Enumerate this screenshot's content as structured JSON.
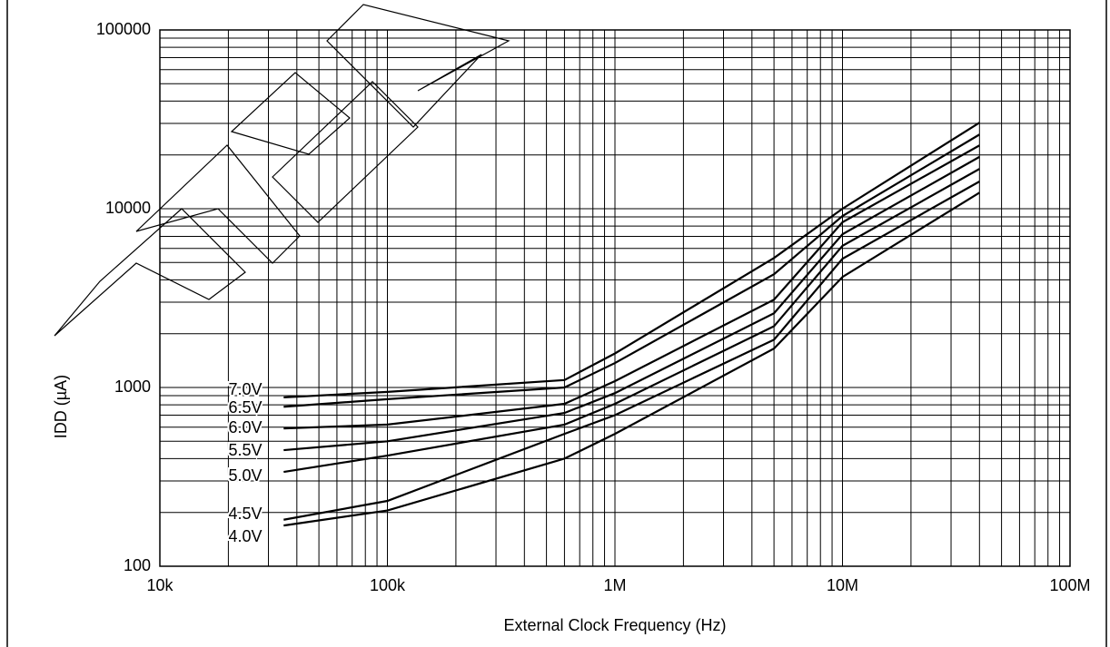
{
  "chart_data": {
    "type": "line",
    "x_label": "External Clock Frequency (Hz)",
    "y_label": "IDD (µA)",
    "log_x": true,
    "log_y": true,
    "grid": true,
    "minor_grid": true,
    "xlim": [
      10000,
      100000000
    ],
    "ylim": [
      100,
      100000
    ],
    "xticks": [
      {
        "value": 10000,
        "label": "10k"
      },
      {
        "value": 100000,
        "label": "100k"
      },
      {
        "value": 1000000,
        "label": "1M"
      },
      {
        "value": 10000000,
        "label": "10M"
      },
      {
        "value": 100000000,
        "label": "100M"
      }
    ],
    "yticks": [
      100,
      1000,
      10000,
      100000
    ],
    "x": [
      35000,
      100000,
      600000,
      1000000,
      5000000,
      10000000,
      40000000
    ],
    "series": [
      {
        "name": "7.0V",
        "color": "#000000",
        "values": [
          880,
          945,
          1100,
          1550,
          5300,
          10000,
          30300
        ]
      },
      {
        "name": "6.5V",
        "color": "#000000",
        "values": [
          780,
          860,
          1000,
          1370,
          4300,
          9100,
          26000
        ]
      },
      {
        "name": "6.0V",
        "color": "#000000",
        "values": [
          590,
          620,
          810,
          1085,
          3100,
          8400,
          22600
        ]
      },
      {
        "name": "5.5V",
        "color": "#000000",
        "values": [
          446,
          500,
          720,
          930,
          2600,
          7200,
          19500
        ]
      },
      {
        "name": "5.0V",
        "color": "#000000",
        "values": [
          337,
          416,
          620,
          810,
          2200,
          6200,
          16700
        ]
      },
      {
        "name": "4.5V",
        "color": "#000000",
        "values": [
          182,
          232,
          550,
          700,
          1850,
          5250,
          14200
        ]
      },
      {
        "name": "4.0V",
        "color": "#000000",
        "values": [
          169,
          205,
          400,
          550,
          1650,
          4150,
          12300
        ]
      }
    ]
  }
}
